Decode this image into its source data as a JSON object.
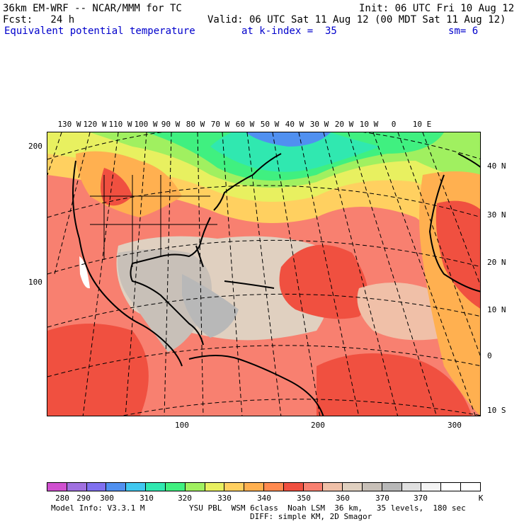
{
  "header": {
    "model": "36km EM-WRF -- NCAR/MMM for TC",
    "init": "Init: 06 UTC Fri 10 Aug 12",
    "fcst": "Fcst:   24 h",
    "valid": "Valid: 06 UTC Sat 11 Aug 12 (00 MDT Sat 11 Aug 12)",
    "field": "Equivalent potential temperature",
    "level": "at k-index =  35",
    "smooth": "sm= 6"
  },
  "map": {
    "lon_labels": [
      "130 W",
      "120 W",
      "110 W",
      "100 W",
      "90 W",
      "80 W",
      "70 W",
      "60 W",
      "50 W",
      "40 W",
      "30 W",
      "20 W",
      "10 W",
      "0",
      "10 E"
    ],
    "lat_labels": [
      "40 N",
      "30 N",
      "20 N",
      "10 N",
      "0",
      "10 S"
    ],
    "y_axis_ticks": [
      "200",
      "100"
    ],
    "x_axis_ticks": [
      "100",
      "200",
      "300"
    ]
  },
  "colorbar": {
    "labels": [
      "280",
      "290",
      "300",
      "310",
      "320",
      "330",
      "340",
      "350",
      "360",
      "370",
      "K"
    ],
    "colors": [
      "#d050d0",
      "#a070e0",
      "#8070f0",
      "#5090f0",
      "#40c8f0",
      "#30e8b0",
      "#40f080",
      "#a0f060",
      "#e8f060",
      "#ffd060",
      "#ffb050",
      "#ff8a50",
      "#f05040",
      "#f88070",
      "#f0c0a8",
      "#e0d0c0",
      "#c8c0b8",
      "#b8b8b8",
      "#e0e0e0",
      "#f4f4f4",
      "#ffffff",
      "#ffffff"
    ]
  },
  "footer": {
    "line1_left": "Model Info: V3.3.1 M",
    "line1_right": "YSU PBL  WSM 6class  Noah LSM  36 km,   35 levels,  180 sec",
    "line2": "DIFF: simple KM, 2D Smagor"
  }
}
